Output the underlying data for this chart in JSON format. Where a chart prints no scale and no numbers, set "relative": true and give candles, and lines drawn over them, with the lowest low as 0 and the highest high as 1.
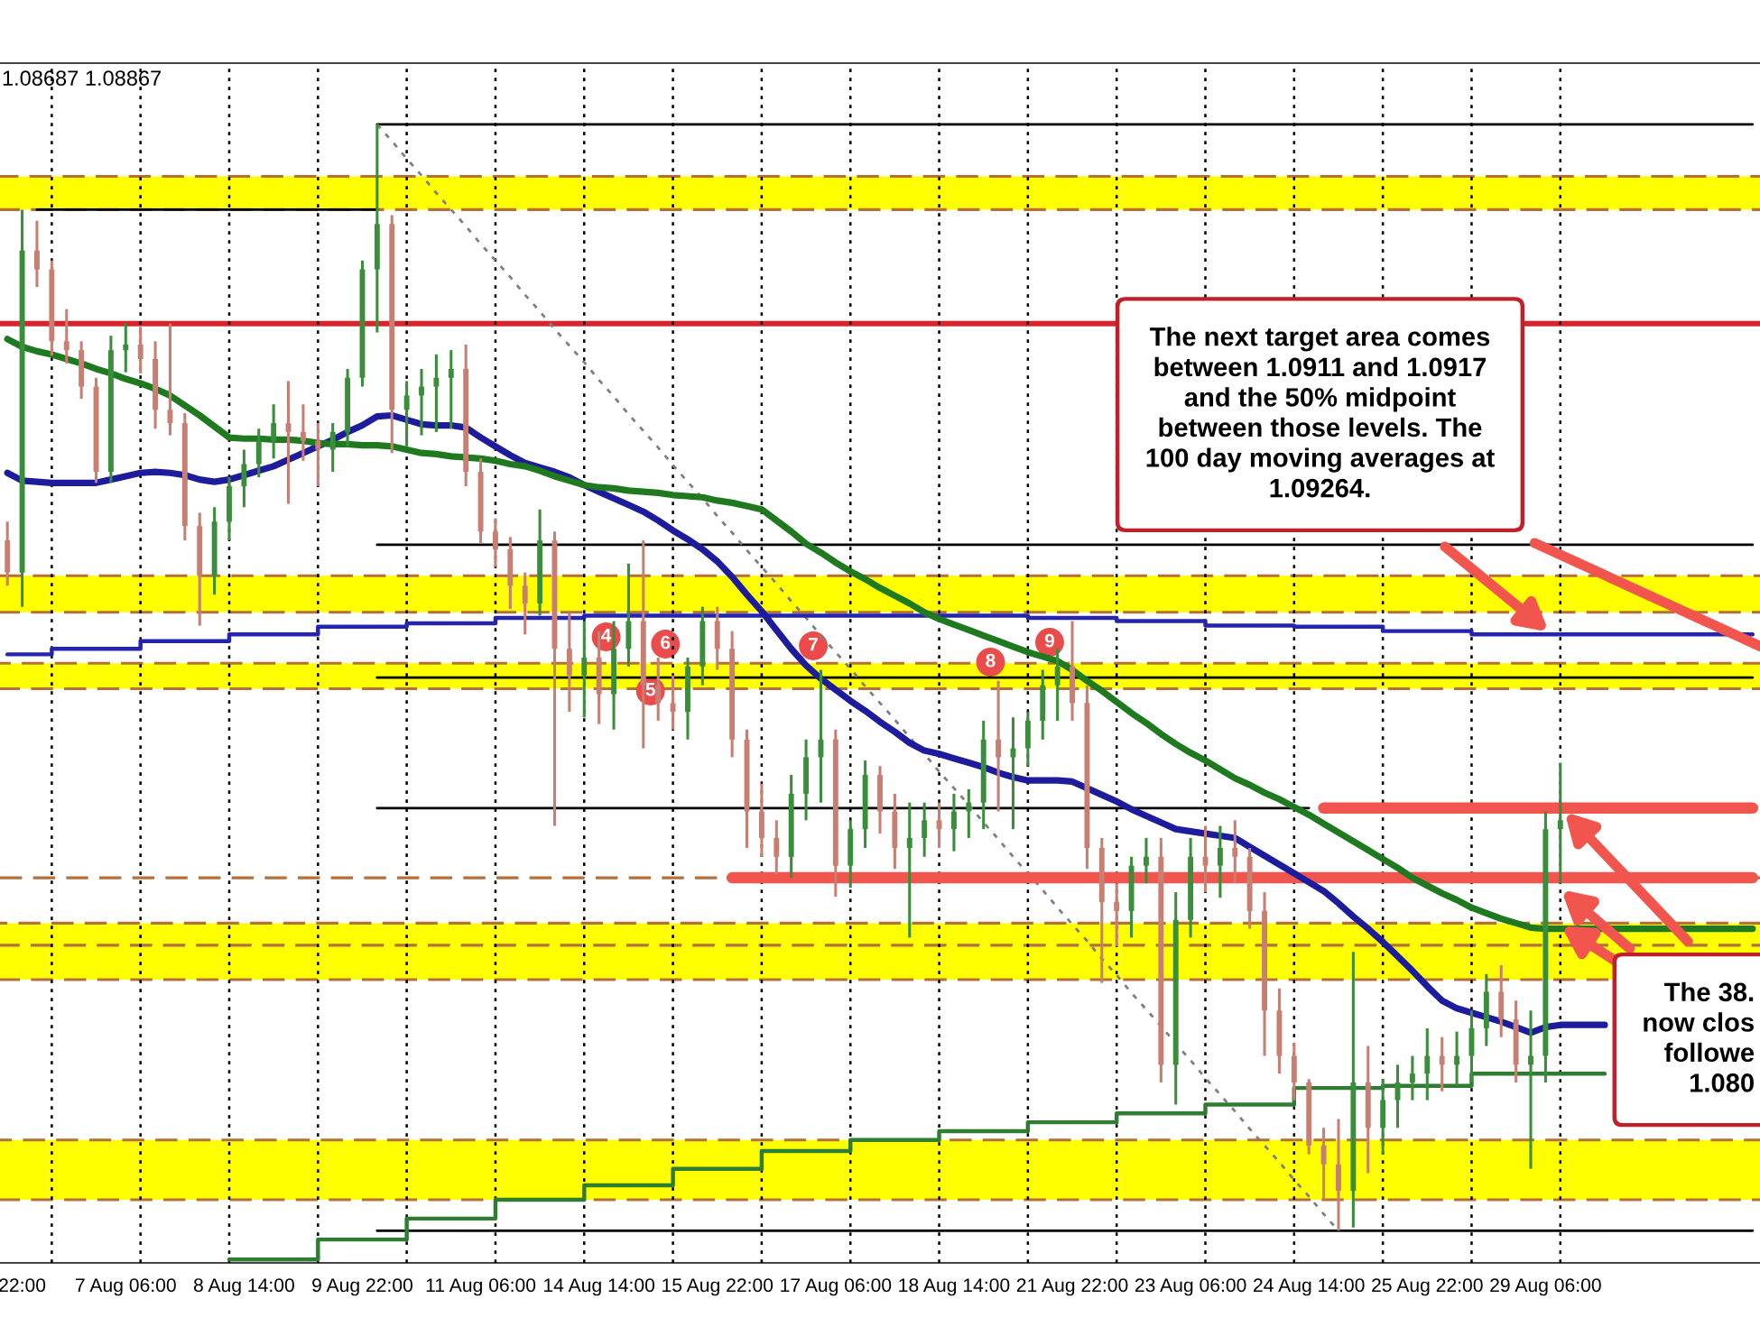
{
  "chart_data": {
    "type": "candlestick",
    "relative": true,
    "categories": [
      null,
      "22:00",
      null,
      null,
      null,
      null,
      null,
      null,
      "7 Aug 06:00",
      null,
      null,
      null,
      null,
      null,
      null,
      null,
      "8 Aug 14:00",
      null,
      null,
      null,
      null,
      null,
      null,
      null,
      "9 Aug 22:00",
      null,
      null,
      null,
      null,
      null,
      null,
      null,
      "11 Aug 06:00",
      null,
      null,
      null,
      null,
      null,
      null,
      null,
      "14 Aug 14:00",
      null,
      null,
      null,
      null,
      null,
      null,
      null,
      "15 Aug 22:00",
      null,
      null,
      null,
      null,
      null,
      null,
      null,
      "17 Aug 06:00",
      null,
      null,
      null,
      null,
      null,
      null,
      null,
      "18 Aug 14:00",
      null,
      null,
      null,
      null,
      null,
      null,
      null,
      "21 Aug 22:00",
      null,
      null,
      null,
      null,
      null,
      null,
      null,
      "23 Aug 06:00",
      null,
      null,
      null,
      null,
      null,
      null,
      null,
      "24 Aug 14:00",
      null,
      null,
      null,
      null,
      null,
      null,
      null,
      "25 Aug 22:00",
      null,
      null,
      null,
      null,
      null,
      null,
      null,
      "29 Aug 06:00",
      null,
      null,
      null,
      null,
      null,
      null,
      null,
      null,
      null,
      null,
      null,
      null,
      null,
      null
    ],
    "ohlc": [
      [
        0.624,
        0.641,
        0.583,
        0.595
      ],
      [
        0.595,
        0.923,
        0.564,
        0.886
      ],
      [
        0.886,
        0.913,
        0.853,
        0.869
      ],
      [
        0.869,
        0.877,
        0.791,
        0.804
      ],
      [
        0.804,
        0.833,
        0.784,
        0.796
      ],
      [
        0.796,
        0.804,
        0.752,
        0.763
      ],
      [
        0.763,
        0.771,
        0.676,
        0.686
      ],
      [
        0.686,
        0.809,
        0.676,
        0.796
      ],
      [
        0.796,
        0.82,
        0.776,
        0.801
      ],
      [
        0.801,
        0.817,
        0.775,
        0.788
      ],
      [
        0.788,
        0.804,
        0.725,
        0.742
      ],
      [
        0.742,
        0.82,
        0.719,
        0.73
      ],
      [
        0.73,
        0.739,
        0.624,
        0.637
      ],
      [
        0.637,
        0.649,
        0.547,
        0.592
      ],
      [
        0.592,
        0.654,
        0.575,
        0.641
      ],
      [
        0.641,
        0.681,
        0.624,
        0.673
      ],
      [
        0.673,
        0.706,
        0.654,
        0.693
      ],
      [
        0.693,
        0.725,
        0.681,
        0.714
      ],
      [
        0.714,
        0.747,
        0.698,
        0.73
      ],
      [
        0.73,
        0.768,
        0.657,
        0.722
      ],
      [
        0.722,
        0.747,
        0.696,
        0.714
      ],
      [
        0.714,
        0.73,
        0.673,
        0.706
      ],
      [
        0.706,
        0.73,
        0.686,
        0.722
      ],
      [
        0.722,
        0.779,
        0.709,
        0.771
      ],
      [
        0.771,
        0.877,
        0.763,
        0.869
      ],
      [
        0.869,
        1,
        0.812,
        0.91
      ],
      [
        0.91,
        0.918,
        0.703,
        0.742
      ],
      [
        0.742,
        0.768,
        0.709,
        0.755
      ],
      [
        0.755,
        0.779,
        0.719,
        0.763
      ],
      [
        0.763,
        0.792,
        0.722,
        0.771
      ],
      [
        0.771,
        0.796,
        0.725,
        0.779
      ],
      [
        0.779,
        0.801,
        0.673,
        0.686
      ],
      [
        0.686,
        0.698,
        0.621,
        0.632
      ],
      [
        0.632,
        0.644,
        0.6,
        0.616
      ],
      [
        0.616,
        0.627,
        0.562,
        0.583
      ],
      [
        0.583,
        0.595,
        0.539,
        0.567
      ],
      [
        0.567,
        0.652,
        0.556,
        0.624
      ],
      [
        0.624,
        0.632,
        0.366,
        0.526
      ],
      [
        0.526,
        0.559,
        0.469,
        0.502
      ],
      [
        0.502,
        0.551,
        0.464,
        0.518
      ],
      [
        0.518,
        0.542,
        0.458,
        0.485
      ],
      [
        0.485,
        0.551,
        0.453,
        0.526
      ],
      [
        0.526,
        0.603,
        0.51,
        0.551
      ],
      [
        0.551,
        0.624,
        0.436,
        0.493
      ],
      [
        0.493,
        0.518,
        0.461,
        0.477
      ],
      [
        0.477,
        0.502,
        0.453,
        0.469
      ],
      [
        0.469,
        0.518,
        0.444,
        0.51
      ],
      [
        0.51,
        0.564,
        0.493,
        0.551
      ],
      [
        0.551,
        0.564,
        0.507,
        0.526
      ],
      [
        0.526,
        0.542,
        0.428,
        0.444
      ],
      [
        0.444,
        0.453,
        0.346,
        0.379
      ],
      [
        0.379,
        0.404,
        0.338,
        0.355
      ],
      [
        0.355,
        0.371,
        0.322,
        0.338
      ],
      [
        0.338,
        0.412,
        0.319,
        0.395
      ],
      [
        0.395,
        0.444,
        0.371,
        0.428
      ],
      [
        0.428,
        0.507,
        0.387,
        0.444
      ],
      [
        0.444,
        0.453,
        0.302,
        0.33
      ],
      [
        0.33,
        0.371,
        0.31,
        0.363
      ],
      [
        0.363,
        0.425,
        0.346,
        0.412
      ],
      [
        0.412,
        0.42,
        0.359,
        0.379
      ],
      [
        0.379,
        0.395,
        0.327,
        0.346
      ],
      [
        0.346,
        0.387,
        0.265,
        0.355
      ],
      [
        0.355,
        0.387,
        0.338,
        0.371
      ],
      [
        0.371,
        0.387,
        0.346,
        0.363
      ],
      [
        0.363,
        0.395,
        0.343,
        0.379
      ],
      [
        0.379,
        0.399,
        0.355,
        0.387
      ],
      [
        0.387,
        0.461,
        0.363,
        0.444
      ],
      [
        0.444,
        0.497,
        0.379,
        0.428
      ],
      [
        0.428,
        0.464,
        0.363,
        0.436
      ],
      [
        0.436,
        0.469,
        0.42,
        0.461
      ],
      [
        0.461,
        0.507,
        0.444,
        0.493
      ],
      [
        0.493,
        0.526,
        0.461,
        0.51
      ],
      [
        0.51,
        0.551,
        0.461,
        0.477
      ],
      [
        0.477,
        0.493,
        0.327,
        0.346
      ],
      [
        0.346,
        0.355,
        0.224,
        0.297
      ],
      [
        0.297,
        0.314,
        0.257,
        0.289
      ],
      [
        0.289,
        0.338,
        0.265,
        0.33
      ],
      [
        0.33,
        0.355,
        0.314,
        0.338
      ],
      [
        0.338,
        0.355,
        0.134,
        0.15
      ],
      [
        0.15,
        0.306,
        0.114,
        0.281
      ],
      [
        0.281,
        0.355,
        0.265,
        0.338
      ],
      [
        0.338,
        0.366,
        0.306,
        0.33
      ],
      [
        0.33,
        0.366,
        0.301,
        0.346
      ],
      [
        0.346,
        0.371,
        0.314,
        0.338
      ],
      [
        0.338,
        0.346,
        0.273,
        0.289
      ],
      [
        0.289,
        0.306,
        0.158,
        0.199
      ],
      [
        0.199,
        0.219,
        0.142,
        0.158
      ],
      [
        0.158,
        0.17,
        0.118,
        0.134
      ],
      [
        0.134,
        0.137,
        0.069,
        0.077
      ],
      [
        0.077,
        0.093,
        0.028,
        0.06
      ],
      [
        0.06,
        0.101,
        0,
        0.036
      ],
      [
        0.036,
        0.252,
        0.003,
        0.134
      ],
      [
        0.134,
        0.167,
        0.052,
        0.093
      ],
      [
        0.093,
        0.137,
        0.069,
        0.118
      ],
      [
        0.118,
        0.15,
        0.093,
        0.134
      ],
      [
        0.134,
        0.158,
        0.118,
        0.142
      ],
      [
        0.142,
        0.183,
        0.118,
        0.158
      ],
      [
        0.158,
        0.175,
        0.126,
        0.15
      ],
      [
        0.15,
        0.18,
        0.131,
        0.158
      ],
      [
        0.158,
        0.199,
        0.134,
        0.183
      ],
      [
        0.183,
        0.232,
        0.167,
        0.216
      ],
      [
        0.216,
        0.24,
        0.175,
        0.191
      ],
      [
        0.191,
        0.208,
        0.134,
        0.15
      ],
      [
        0.15,
        0.199,
        0.056,
        0.158
      ],
      [
        0.158,
        0.379,
        0.134,
        0.363
      ],
      [
        0.363,
        0.423,
        0.314,
        0.371
      ],
      null,
      null,
      null,
      null,
      null,
      null,
      null,
      null,
      null,
      null,
      null,
      null,
      null
    ],
    "colors": [
      "#c77f74",
      "#3a8d3a",
      "#c77f74",
      "#c77f74",
      "#c77f74",
      "#c77f74",
      "#c77f74",
      "#3a8d3a",
      "#3a8d3a",
      "#c77f74",
      "#c77f74",
      "#c77f74",
      "#c77f74",
      "#c77f74",
      "#3a8d3a",
      "#3a8d3a",
      "#3a8d3a",
      "#3a8d3a",
      "#3a8d3a",
      "#c77f74",
      "#c77f74",
      "#c77f74",
      "#3a8d3a",
      "#3a8d3a",
      "#3a8d3a",
      "#3a8d3a",
      "#c77f74",
      "#3a8d3a",
      "#3a8d3a",
      "#3a8d3a",
      "#3a8d3a",
      "#c77f74",
      "#c77f74",
      "#c77f74",
      "#c77f74",
      "#c77f74",
      "#3a8d3a",
      "#c77f74",
      "#c77f74",
      "#3a8d3a",
      "#c77f74",
      "#3a8d3a",
      "#3a8d3a",
      "#c77f74",
      "#c77f74",
      "#c77f74",
      "#3a8d3a",
      "#3a8d3a",
      "#c77f74",
      "#c77f74",
      "#c77f74",
      "#c77f74",
      "#c77f74",
      "#3a8d3a",
      "#3a8d3a",
      "#3a8d3a",
      "#c77f74",
      "#3a8d3a",
      "#3a8d3a",
      "#c77f74",
      "#c77f74",
      "#3a8d3a",
      "#3a8d3a",
      "#c77f74",
      "#3a8d3a",
      "#3a8d3a",
      "#3a8d3a",
      "#c77f74",
      "#3a8d3a",
      "#3a8d3a",
      "#3a8d3a",
      "#3a8d3a",
      "#c77f74",
      "#c77f74",
      "#c77f74",
      "#c77f74",
      "#3a8d3a",
      "#3a8d3a",
      "#c77f74",
      "#3a8d3a",
      "#3a8d3a",
      "#c77f74",
      "#3a8d3a",
      "#c77f74",
      "#c77f74",
      "#c77f74",
      "#c77f74",
      "#c77f74",
      "#c77f74",
      "#c77f74",
      "#c77f74",
      "#3a8d3a",
      "#c77f74",
      "#3a8d3a",
      "#3a8d3a",
      "#3a8d3a",
      "#3a8d3a",
      "#c77f74",
      "#3a8d3a",
      "#3a8d3a",
      "#3a8d3a",
      "#c77f74",
      "#c77f74",
      "#3a8d3a",
      "#3a8d3a",
      "#3a8d3a",
      null,
      null,
      null,
      null,
      null,
      null,
      null,
      null,
      null,
      null,
      null,
      null,
      null
    ],
    "grid": "x",
    "series": [
      {
        "type": "line",
        "color": "#1c1c9c",
        "values": [
          0.685,
          0.678,
          0.677,
          0.676,
          0.676,
          0.676,
          0.676,
          0.679,
          0.682,
          0.685,
          0.686,
          0.685,
          0.683,
          0.679,
          0.677,
          0.679,
          0.683,
          0.687,
          0.691,
          0.697,
          0.703,
          0.709,
          0.715,
          0.722,
          0.728,
          0.736,
          0.737,
          0.733,
          0.729,
          0.728,
          0.728,
          0.726,
          0.717,
          0.709,
          0.701,
          0.694,
          0.69,
          0.686,
          0.681,
          0.674,
          0.668,
          0.662,
          0.656,
          0.65,
          0.642,
          0.633,
          0.625,
          0.616,
          0.605,
          0.591,
          0.575,
          0.56,
          0.543,
          0.526,
          0.511,
          0.499,
          0.489,
          0.479,
          0.47,
          0.46,
          0.451,
          0.441,
          0.434,
          0.431,
          0.427,
          0.423,
          0.419,
          0.414,
          0.41,
          0.407,
          0.407,
          0.407,
          0.406,
          0.4,
          0.394,
          0.388,
          0.381,
          0.375,
          0.369,
          0.363,
          0.361,
          0.359,
          0.357,
          0.355,
          0.347,
          0.339,
          0.331,
          0.323,
          0.315,
          0.307,
          0.296,
          0.284,
          0.273,
          0.261,
          0.248,
          0.235,
          0.221,
          0.208,
          0.201,
          0.197,
          0.193,
          0.189,
          0.184,
          0.179,
          0.184,
          0.186,
          0.186,
          0.186,
          0.186,
          null,
          null,
          null,
          null,
          null,
          null,
          null,
          null,
          null,
          null
        ]
      },
      {
        "type": "line",
        "color": "#1f7a1f",
        "values": [
          0.806,
          0.799,
          0.795,
          0.792,
          0.788,
          0.784,
          0.779,
          0.775,
          0.77,
          0.766,
          0.761,
          0.755,
          0.746,
          0.737,
          0.727,
          0.717,
          0.716,
          0.716,
          0.715,
          0.715,
          0.714,
          0.712,
          0.711,
          0.711,
          0.71,
          0.71,
          0.709,
          0.706,
          0.703,
          0.702,
          0.7,
          0.699,
          0.698,
          0.696,
          0.693,
          0.691,
          0.687,
          0.682,
          0.678,
          0.674,
          0.672,
          0.671,
          0.669,
          0.668,
          0.667,
          0.665,
          0.664,
          0.663,
          0.66,
          0.658,
          0.655,
          0.652,
          0.642,
          0.632,
          0.621,
          0.613,
          0.604,
          0.596,
          0.589,
          0.581,
          0.574,
          0.567,
          0.559,
          0.553,
          0.548,
          0.543,
          0.538,
          0.533,
          0.528,
          0.523,
          0.519,
          0.515,
          0.507,
          0.497,
          0.488,
          0.478,
          0.468,
          0.459,
          0.449,
          0.44,
          0.432,
          0.425,
          0.417,
          0.409,
          0.403,
          0.396,
          0.39,
          0.383,
          0.376,
          0.368,
          0.36,
          0.352,
          0.344,
          0.336,
          0.328,
          0.319,
          0.312,
          0.305,
          0.299,
          0.292,
          0.287,
          0.282,
          0.278,
          0.274,
          0.273,
          0.273,
          0.273,
          0.273,
          0.273,
          0.273,
          0.273,
          0.273,
          0.273,
          0.273,
          0.273,
          0.273,
          0.273,
          0.273,
          0.273
        ]
      },
      {
        "type": "step",
        "color": "#2424b0",
        "values": [
          0.521,
          0.521,
          0.521,
          0.526,
          0.526,
          0.526,
          0.526,
          0.526,
          0.526,
          0.533,
          0.533,
          0.533,
          0.533,
          0.533,
          0.533,
          0.539,
          0.539,
          0.539,
          0.539,
          0.539,
          0.539,
          0.546,
          0.546,
          0.546,
          0.546,
          0.546,
          0.546,
          0.549,
          0.549,
          0.549,
          0.549,
          0.549,
          0.549,
          0.554,
          0.554,
          0.554,
          0.554,
          0.554,
          0.554,
          0.556,
          0.556,
          0.556,
          0.556,
          0.556,
          0.556,
          0.556,
          0.556,
          0.556,
          0.556,
          0.556,
          0.556,
          0.556,
          0.556,
          0.556,
          0.556,
          0.556,
          0.556,
          0.556,
          0.556,
          0.556,
          0.556,
          0.556,
          0.556,
          0.556,
          0.556,
          0.556,
          0.556,
          0.556,
          0.556,
          0.554,
          0.554,
          0.554,
          0.554,
          0.554,
          0.554,
          0.551,
          0.551,
          0.551,
          0.551,
          0.551,
          0.551,
          0.547,
          0.547,
          0.547,
          0.547,
          0.547,
          0.547,
          0.546,
          0.546,
          0.546,
          0.546,
          0.546,
          0.546,
          0.542,
          0.542,
          0.542,
          0.542,
          0.542,
          0.542,
          0.539,
          0.539,
          0.539,
          0.539,
          0.539,
          0.539,
          0.539,
          0.539,
          0.539,
          0.539,
          0.539,
          0.539,
          0.539,
          0.539,
          0.539,
          0.539,
          0.539,
          0.539,
          0.539,
          0.539
        ]
      },
      {
        "type": "step",
        "color": "#2e7d32",
        "values": [
          null,
          null,
          null,
          null,
          null,
          null,
          null,
          null,
          null,
          null,
          null,
          null,
          null,
          null,
          null,
          -0.026,
          -0.026,
          -0.026,
          -0.026,
          -0.026,
          -0.026,
          -0.008,
          -0.008,
          -0.008,
          -0.008,
          -0.008,
          -0.008,
          0.011,
          0.011,
          0.011,
          0.011,
          0.011,
          0.011,
          0.028,
          0.028,
          0.028,
          0.028,
          0.028,
          0.028,
          0.041,
          0.041,
          0.041,
          0.041,
          0.041,
          0.041,
          0.056,
          0.056,
          0.056,
          0.056,
          0.056,
          0.056,
          0.072,
          0.072,
          0.072,
          0.072,
          0.072,
          0.072,
          0.082,
          0.082,
          0.082,
          0.082,
          0.082,
          0.082,
          0.09,
          0.09,
          0.09,
          0.09,
          0.09,
          0.09,
          0.098,
          0.098,
          0.098,
          0.098,
          0.098,
          0.098,
          0.106,
          0.106,
          0.106,
          0.106,
          0.106,
          0.106,
          0.114,
          0.114,
          0.114,
          0.114,
          0.114,
          0.114,
          0.129,
          0.129,
          0.129,
          0.129,
          0.129,
          0.129,
          0.131,
          0.131,
          0.131,
          0.131,
          0.131,
          0.131,
          0.142,
          0.142,
          0.142,
          0.142,
          0.142,
          0.142,
          0.142,
          0.142,
          0.142,
          0.142,
          null,
          null,
          null,
          null,
          null,
          null,
          null,
          null,
          null,
          null
        ]
      },
      {
        "type": "line",
        "color": "#000000",
        "values": [
          null,
          null,
          null,
          null,
          null,
          null,
          null,
          null,
          null,
          null,
          null,
          null,
          null,
          null,
          null,
          null,
          null,
          null,
          null,
          null,
          null,
          null,
          null,
          null,
          null,
          1,
          1,
          1,
          1,
          1,
          1,
          1,
          1,
          1,
          1,
          1,
          1,
          1,
          1,
          1,
          1,
          1,
          1,
          1,
          1,
          1,
          1,
          1,
          1,
          1,
          1,
          1,
          1,
          1,
          1,
          1,
          1,
          1,
          1,
          1,
          1,
          1,
          1,
          1,
          1,
          1,
          1,
          1,
          1,
          1,
          1,
          1,
          1,
          1,
          1,
          1,
          1,
          1,
          1,
          1,
          1,
          1,
          1,
          1,
          1,
          1,
          1,
          1,
          1,
          1,
          1,
          1,
          1,
          1,
          1,
          1,
          1,
          1,
          1,
          1,
          1,
          1,
          1,
          1,
          1,
          1,
          1,
          1,
          1,
          1,
          1,
          1,
          1,
          1,
          1,
          1,
          1,
          1,
          1
        ]
      },
      {
        "type": "line",
        "color": "#000000",
        "values": [
          null,
          null,
          null,
          null,
          null,
          null,
          null,
          null,
          null,
          null,
          null,
          null,
          null,
          null,
          null,
          null,
          null,
          null,
          null,
          null,
          null,
          null,
          null,
          null,
          null,
          0.62,
          0.62,
          0.62,
          0.62,
          0.62,
          0.62,
          0.62,
          0.62,
          0.62,
          0.62,
          0.62,
          0.62,
          0.62,
          0.62,
          0.62,
          0.62,
          0.62,
          0.62,
          0.62,
          0.62,
          0.62,
          0.62,
          0.62,
          0.62,
          0.62,
          0.62,
          0.62,
          0.62,
          0.62,
          0.62,
          0.62,
          0.62,
          0.62,
          0.62,
          0.62,
          0.62,
          0.62,
          0.62,
          0.62,
          0.62,
          0.62,
          0.62,
          0.62,
          0.62,
          0.62,
          0.62,
          0.62,
          0.62,
          0.62,
          0.62,
          0.62,
          0.62,
          0.62,
          0.62,
          0.62,
          0.62,
          0.62,
          0.62,
          0.62,
          0.62,
          0.62,
          0.62,
          0.62,
          0.62,
          0.62,
          0.62,
          0.62,
          0.62,
          0.62,
          0.62,
          0.62,
          0.62,
          0.62,
          0.62,
          0.62,
          0.62,
          0.62,
          0.62,
          0.62,
          0.62,
          0.62,
          0.62,
          0.62,
          0.62,
          0.62,
          0.62,
          0.62,
          0.62,
          0.62,
          0.62,
          0.62,
          0.62,
          0.62,
          0.62
        ]
      },
      {
        "type": "line",
        "color": "#000000",
        "values": [
          null,
          null,
          null,
          null,
          null,
          null,
          null,
          null,
          null,
          null,
          null,
          null,
          null,
          null,
          null,
          null,
          null,
          null,
          null,
          null,
          null,
          null,
          null,
          null,
          null,
          0.5,
          0.5,
          0.5,
          0.5,
          0.5,
          0.5,
          0.5,
          0.5,
          0.5,
          0.5,
          0.5,
          0.5,
          0.5,
          0.5,
          0.5,
          0.5,
          0.5,
          0.5,
          0.5,
          0.5,
          0.5,
          0.5,
          0.5,
          0.5,
          0.5,
          0.5,
          0.5,
          0.5,
          0.5,
          0.5,
          0.5,
          0.5,
          0.5,
          0.5,
          0.5,
          0.5,
          0.5,
          0.5,
          0.5,
          0.5,
          0.5,
          0.5,
          0.5,
          0.5,
          0.5,
          0.5,
          0.5,
          0.5,
          0.5,
          0.5,
          0.5,
          0.5,
          0.5,
          0.5,
          0.5,
          0.5,
          0.5,
          0.5,
          0.5,
          0.5,
          0.5,
          0.5,
          0.5,
          0.5,
          0.5,
          0.5,
          0.5,
          0.5,
          0.5,
          0.5,
          0.5,
          0.5,
          0.5,
          0.5,
          0.5,
          0.5,
          0.5,
          0.5,
          0.5,
          0.5,
          0.5,
          0.5,
          0.5,
          0.5,
          0.5,
          0.5,
          0.5,
          0.5,
          0.5,
          0.5,
          0.5,
          0.5,
          0.5,
          0.5
        ]
      },
      {
        "type": "line",
        "color": "#000000",
        "values": [
          null,
          null,
          null,
          null,
          null,
          null,
          null,
          null,
          null,
          null,
          null,
          null,
          null,
          null,
          null,
          null,
          null,
          null,
          null,
          null,
          null,
          null,
          null,
          null,
          null,
          0.382,
          0.382,
          0.382,
          0.382,
          0.382,
          0.382,
          0.382,
          0.382,
          0.382,
          0.382,
          0.382,
          0.382,
          0.382,
          0.382,
          0.382,
          0.382,
          0.382,
          0.382,
          0.382,
          0.382,
          0.382,
          0.382,
          0.382,
          0.382,
          0.382,
          0.382,
          0.382,
          0.382,
          0.382,
          0.382,
          0.382,
          0.382,
          0.382,
          0.382,
          0.382,
          0.382,
          0.382,
          0.382,
          0.382,
          0.382,
          0.382,
          0.382,
          0.382,
          0.382,
          0.382,
          0.382,
          0.382,
          0.382,
          0.382,
          0.382,
          0.382,
          0.382,
          0.382,
          0.382,
          0.382,
          0.382,
          0.382,
          0.382,
          0.382,
          0.382,
          0.382,
          0.382,
          0.382,
          0.382,
          null,
          null,
          null,
          null,
          null,
          null,
          null,
          null,
          null,
          null,
          null,
          null,
          null,
          null,
          null,
          null,
          null,
          null,
          null,
          null,
          null,
          null,
          null,
          null,
          null,
          null,
          null,
          null,
          null,
          null
        ]
      },
      {
        "type": "line",
        "color": "#000000",
        "values": [
          null,
          null,
          null,
          null,
          null,
          null,
          null,
          null,
          null,
          null,
          null,
          null,
          null,
          null,
          null,
          null,
          null,
          null,
          null,
          null,
          null,
          null,
          null,
          null,
          null,
          0,
          0,
          0,
          0,
          0,
          0,
          0,
          0,
          0,
          0,
          0,
          0,
          0,
          0,
          0,
          0,
          0,
          0,
          0,
          0,
          0,
          0,
          0,
          0,
          0,
          0,
          0,
          0,
          0,
          0,
          0,
          0,
          0,
          0,
          0,
          0,
          0,
          0,
          0,
          0,
          0,
          0,
          0,
          0,
          0,
          0,
          0,
          0,
          0,
          0,
          0,
          0,
          0,
          0,
          0,
          0,
          0,
          0,
          0,
          0,
          0,
          0,
          0,
          0,
          0,
          0,
          0,
          0,
          0,
          0,
          0,
          0,
          0,
          0,
          0,
          0,
          0,
          0,
          0,
          0,
          0,
          0,
          0,
          0,
          0,
          0,
          0,
          0,
          0,
          0,
          0,
          0,
          0,
          0
        ]
      },
      {
        "type": "line",
        "color": "#000000",
        "values": [
          null,
          null,
          0.923,
          0.923,
          0.923,
          0.923,
          0.923,
          0.923,
          0.923,
          0.923,
          0.923,
          0.923,
          0.923,
          0.923,
          0.923,
          0.923,
          0.923,
          0.923,
          0.923,
          0.923,
          0.923,
          0.923,
          0.923,
          0.923,
          0.923,
          0.923,
          null,
          null,
          null,
          null,
          null,
          null,
          null,
          null,
          null,
          null,
          null,
          null,
          null,
          null,
          null,
          null,
          null,
          null,
          null,
          null,
          null,
          null,
          null,
          null,
          null,
          null,
          null,
          null,
          null,
          null,
          null,
          null,
          null,
          null,
          null,
          null,
          null,
          null,
          null,
          null,
          null,
          null,
          null,
          null,
          null,
          null,
          null,
          null,
          null,
          null,
          null,
          null,
          null,
          null,
          null,
          null,
          null,
          null,
          null,
          null,
          null,
          null,
          null,
          null,
          null,
          null,
          null,
          null,
          null,
          null,
          null,
          null,
          null,
          null,
          null,
          null,
          null,
          null,
          null,
          null,
          null,
          null,
          null,
          null,
          null,
          null,
          null,
          null,
          null,
          null,
          null,
          null,
          null
        ]
      },
      {
        "type": "line",
        "color": "#7f7f7f",
        "line_style": "dotted",
        "values": [
          null,
          null,
          null,
          null,
          null,
          null,
          null,
          null,
          null,
          null,
          null,
          null,
          null,
          null,
          null,
          null,
          null,
          null,
          null,
          null,
          null,
          null,
          null,
          null,
          null,
          1,
          0.985,
          0.969,
          0.954,
          0.938,
          0.923,
          0.908,
          0.892,
          0.877,
          0.862,
          0.846,
          0.831,
          0.815,
          0.8,
          0.785,
          0.769,
          0.754,
          0.738,
          0.723,
          0.708,
          0.692,
          0.677,
          0.662,
          0.646,
          0.631,
          0.615,
          0.6,
          0.585,
          0.569,
          0.554,
          0.538,
          0.523,
          0.508,
          0.492,
          0.477,
          0.462,
          0.446,
          0.431,
          0.415,
          0.4,
          0.385,
          0.369,
          0.354,
          0.338,
          0.323,
          0.308,
          0.292,
          0.277,
          0.262,
          0.246,
          0.231,
          0.215,
          0.2,
          0.185,
          0.169,
          0.154,
          0.138,
          0.123,
          0.108,
          0.092,
          0.077,
          0.062,
          0.046,
          0.031,
          0.015,
          0,
          null,
          null,
          null,
          null,
          null,
          null,
          null,
          null,
          null,
          null,
          null,
          null,
          null,
          null,
          null,
          null,
          null,
          null,
          null,
          null,
          null,
          null,
          null,
          null,
          null,
          null,
          null,
          null
        ]
      },
      {
        "type": "line",
        "color": "#f2554d",
        "values": [
          null,
          null,
          null,
          null,
          null,
          null,
          null,
          null,
          null,
          null,
          null,
          null,
          null,
          null,
          null,
          null,
          null,
          null,
          null,
          null,
          null,
          null,
          null,
          null,
          null,
          null,
          null,
          null,
          null,
          null,
          null,
          null,
          null,
          null,
          null,
          null,
          null,
          null,
          null,
          null,
          null,
          null,
          null,
          null,
          null,
          null,
          null,
          null,
          null,
          0.319,
          0.319,
          0.319,
          0.319,
          0.319,
          0.319,
          0.319,
          0.319,
          0.319,
          0.319,
          0.319,
          0.319,
          0.319,
          0.319,
          0.319,
          0.319,
          0.319,
          0.319,
          0.319,
          0.319,
          0.319,
          0.319,
          0.319,
          0.319,
          0.319,
          0.319,
          0.319,
          0.319,
          0.319,
          0.319,
          0.319,
          0.319,
          0.319,
          0.319,
          0.319,
          0.319,
          0.319,
          0.319,
          0.319,
          0.319,
          0.319,
          0.319,
          0.319,
          0.319,
          0.319,
          0.319,
          0.319,
          0.319,
          0.319,
          0.319,
          0.319,
          0.319,
          0.319,
          0.319,
          0.319,
          0.319,
          0.319,
          0.319,
          0.319,
          0.319,
          0.319,
          0.319,
          0.319,
          0.319,
          0.319,
          0.319,
          0.319,
          0.319,
          0.319,
          0.319
        ]
      },
      {
        "type": "line",
        "color": "#f2554d",
        "values": [
          null,
          null,
          null,
          null,
          null,
          null,
          null,
          null,
          null,
          null,
          null,
          null,
          null,
          null,
          null,
          null,
          null,
          null,
          null,
          null,
          null,
          null,
          null,
          null,
          null,
          null,
          null,
          null,
          null,
          null,
          null,
          null,
          null,
          null,
          null,
          null,
          null,
          null,
          null,
          null,
          null,
          null,
          null,
          null,
          null,
          null,
          null,
          null,
          null,
          null,
          null,
          null,
          null,
          null,
          null,
          null,
          null,
          null,
          null,
          null,
          null,
          null,
          null,
          null,
          null,
          null,
          null,
          null,
          null,
          null,
          null,
          null,
          null,
          null,
          null,
          null,
          null,
          null,
          null,
          null,
          null,
          null,
          null,
          null,
          null,
          null,
          null,
          null,
          null,
          0.382,
          0.382,
          0.382,
          0.382,
          0.382,
          0.382,
          0.382,
          0.382,
          0.382,
          0.382,
          0.382,
          0.382,
          0.382,
          0.382,
          0.382,
          0.382,
          0.382,
          0.382,
          0.382,
          0.382,
          0.382,
          0.382,
          0.382,
          0.382,
          0.382,
          0.382,
          0.382,
          0.382,
          0.382,
          0.382
        ]
      }
    ],
    "ref_lines": [
      {
        "axis": "y",
        "value": 0.82,
        "color": "#d7262b"
      },
      {
        "axis": "y",
        "value": 0.319,
        "color": "#b5703a",
        "line_style": "dashed"
      }
    ],
    "bands": [
      {
        "axis": "y",
        "from": 0.923,
        "to": 0.953,
        "color": "#ffff00"
      },
      {
        "axis": "y",
        "from": 0.559,
        "to": 0.592,
        "color": "#ffff00"
      },
      {
        "axis": "y",
        "from": 0.49,
        "to": 0.513,
        "color": "#ffff00"
      },
      {
        "axis": "y",
        "from": 0.258,
        "to": 0.278,
        "color": "#ffff00"
      },
      {
        "axis": "y",
        "from": 0.227,
        "to": 0.258,
        "color": "#ffff00"
      },
      {
        "axis": "y",
        "from": 0.028,
        "to": 0.082,
        "color": "#ffff00"
      }
    ],
    "annotations": [
      "1.08687 1.08867",
      "4",
      "5",
      "6",
      "7",
      "8",
      "9",
      "The next target area comes\nbetween 1.0911 and 1.0917\nand the 50% midpoint\nbetween those levels. The\n100 day moving averages at\n1.09264.",
      "The 38.\nnow clos\nfollowe\n1.080"
    ]
  }
}
